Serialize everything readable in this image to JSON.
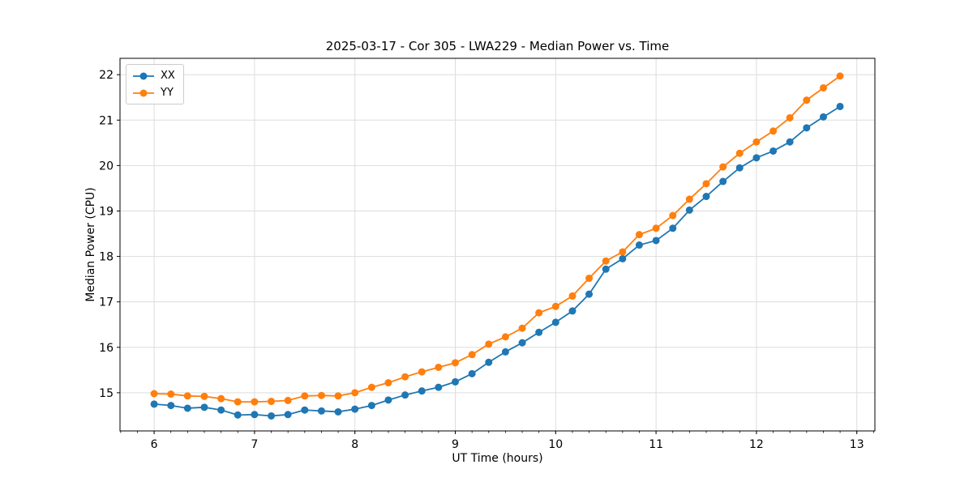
{
  "chart_data": {
    "type": "line",
    "title": "2025-03-17 - Cor 305 - LWA229 - Median Power vs. Time",
    "xlabel": "UT Time (hours)",
    "ylabel": "Median Power (CPU)",
    "xlim": [
      5.66,
      13.18
    ],
    "ylim": [
      14.16,
      22.36
    ],
    "xticks": [
      6,
      7,
      8,
      9,
      10,
      11,
      12,
      13
    ],
    "yticks": [
      15,
      16,
      17,
      18,
      19,
      20,
      21,
      22
    ],
    "x_minor_step": 0.166667,
    "grid": true,
    "legend_position": "upper-left",
    "grid_color": "#dddddd",
    "spine_color": "#000000",
    "x": [
      6,
      6.167,
      6.333,
      6.5,
      6.667,
      6.833,
      7,
      7.167,
      7.333,
      7.5,
      7.667,
      7.833,
      8,
      8.167,
      8.333,
      8.5,
      8.667,
      8.833,
      9,
      9.167,
      9.333,
      9.5,
      9.667,
      9.833,
      10,
      10.167,
      10.333,
      10.5,
      10.667,
      10.833,
      11,
      11.167,
      11.333,
      11.5,
      11.667,
      11.833,
      12,
      12.167,
      12.333,
      12.5,
      12.667,
      12.833
    ],
    "series": [
      {
        "name": "XX",
        "color": "#1f77b4",
        "values": [
          14.75,
          14.72,
          14.66,
          14.68,
          14.62,
          14.51,
          14.52,
          14.49,
          14.52,
          14.62,
          14.6,
          14.58,
          14.64,
          14.72,
          14.84,
          14.95,
          15.04,
          15.12,
          15.24,
          15.42,
          15.67,
          15.9,
          16.1,
          16.33,
          16.55,
          16.8,
          17.17,
          17.72,
          17.95,
          18.25,
          18.35,
          18.62,
          19.02,
          19.32,
          19.65,
          19.95,
          20.17,
          20.32,
          20.52,
          20.83,
          21.07,
          21.3
        ]
      },
      {
        "name": "YY",
        "color": "#ff7f0e",
        "values": [
          14.98,
          14.97,
          14.93,
          14.92,
          14.87,
          14.8,
          14.8,
          14.81,
          14.83,
          14.93,
          14.94,
          14.93,
          15.0,
          15.12,
          15.22,
          15.35,
          15.46,
          15.56,
          15.66,
          15.84,
          16.07,
          16.23,
          16.42,
          16.76,
          16.9,
          17.13,
          17.52,
          17.9,
          18.1,
          18.48,
          18.62,
          18.9,
          19.26,
          19.6,
          19.97,
          20.27,
          20.52,
          20.76,
          21.05,
          21.44,
          21.71,
          21.97
        ]
      }
    ]
  }
}
